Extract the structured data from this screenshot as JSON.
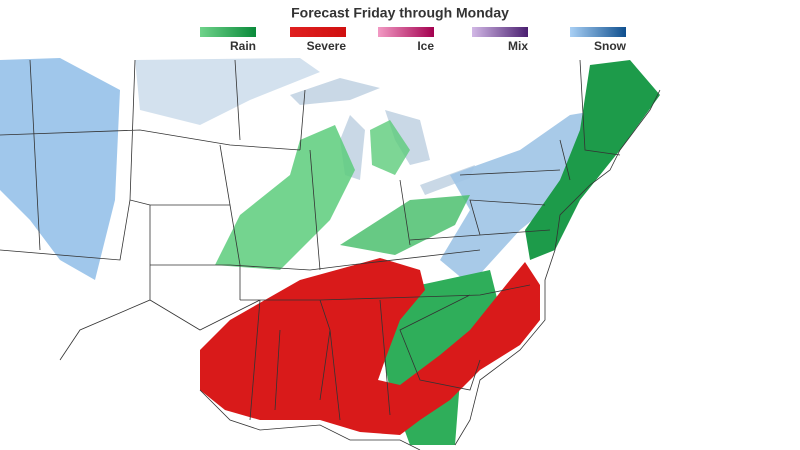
{
  "title": "Forecast Friday through Monday",
  "legend": [
    {
      "label": "Rain",
      "colors": [
        "#6fd38a",
        "#0a8a3a"
      ]
    },
    {
      "label": "Severe",
      "colors": [
        "#e02020",
        "#d01010"
      ]
    },
    {
      "label": "Ice",
      "colors": [
        "#f29ac4",
        "#a3004f"
      ]
    },
    {
      "label": "Mix",
      "colors": [
        "#d2b8e6",
        "#4a1f70"
      ]
    },
    {
      "label": "Snow",
      "colors": [
        "#a9d0f5",
        "#0f4f8e"
      ]
    }
  ]
}
